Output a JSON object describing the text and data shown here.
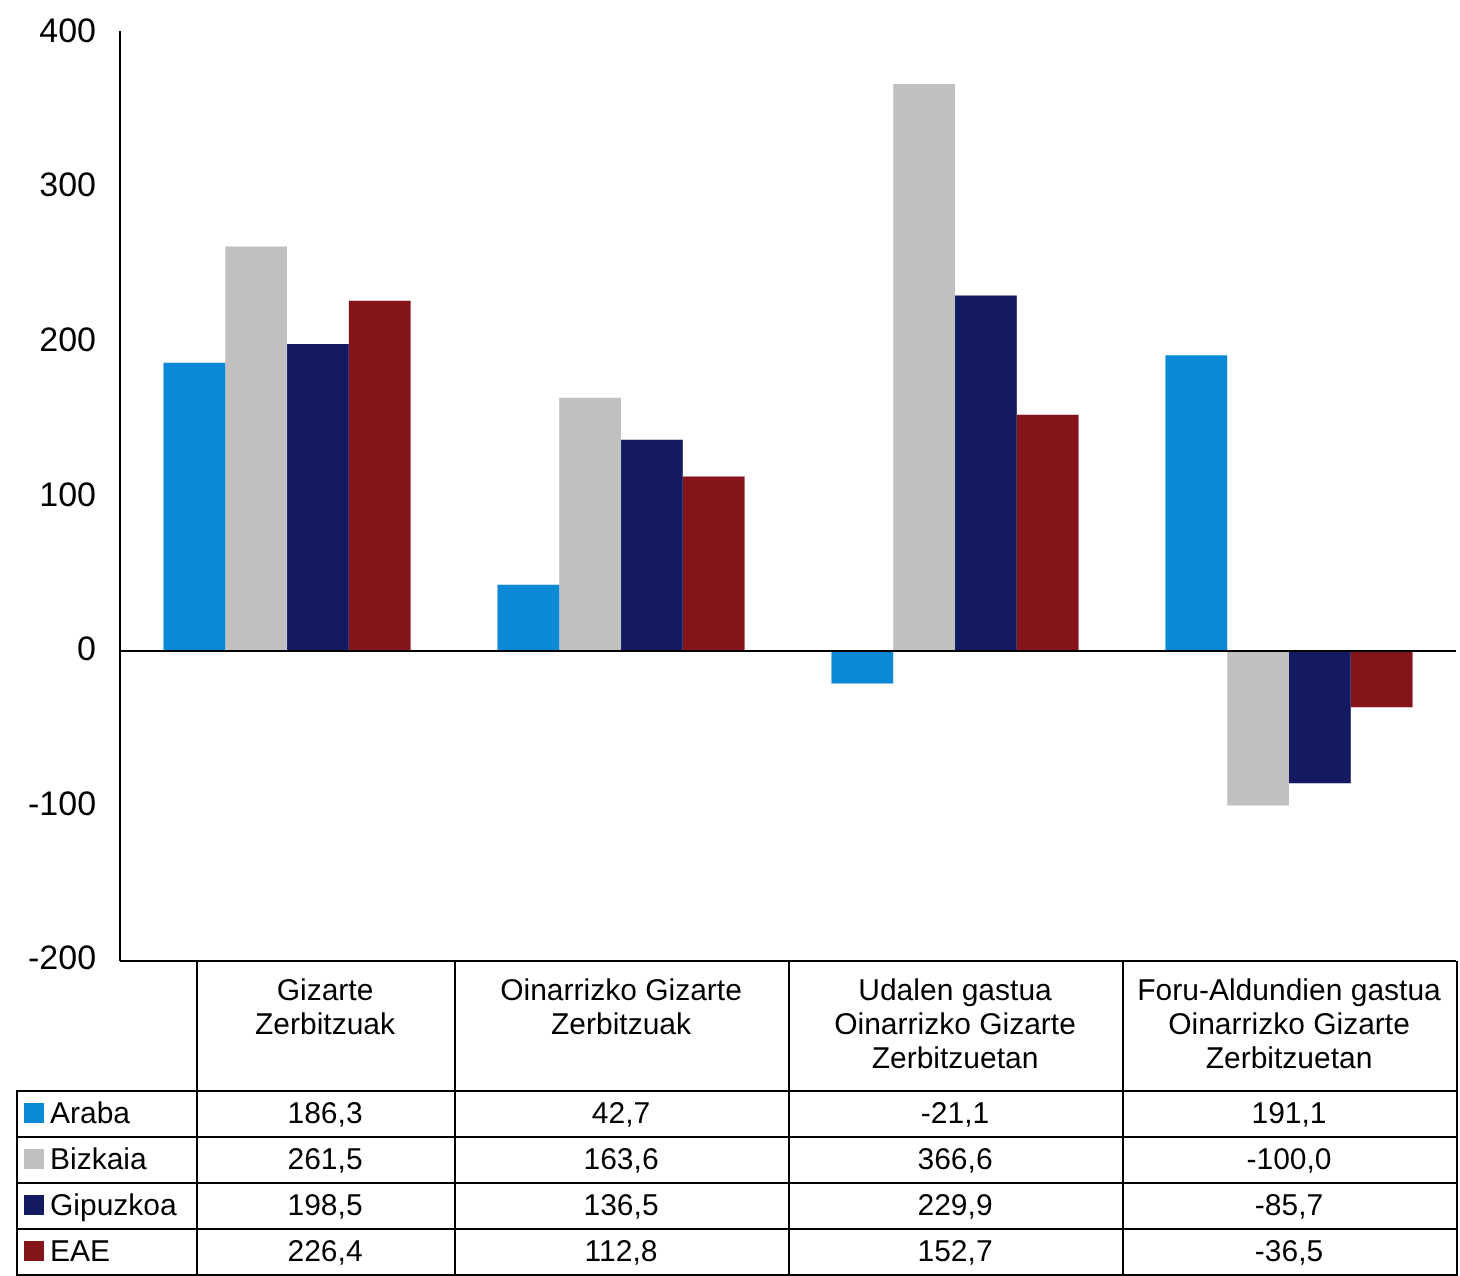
{
  "chart_data": {
    "type": "bar",
    "categories": [
      "Gizarte Zerbitzuak",
      "Oinarrizko Gizarte Zerbitzuak",
      "Udalen gastua Oinarrizko Gizarte Zerbitzuetan",
      "Foru-Aldundien gastua Oinarrizko Gizarte Zerbitzuetan"
    ],
    "series": [
      {
        "name": "Araba",
        "color": "#0a8ad6",
        "values": [
          186.3,
          42.7,
          -21.1,
          191.1
        ],
        "value_labels": [
          "186,3",
          "42,7",
          "-21,1",
          "191,1"
        ]
      },
      {
        "name": "Bizkaia",
        "color": "#c0c0c0",
        "values": [
          261.5,
          163.6,
          366.6,
          -100.0
        ],
        "value_labels": [
          "261,5",
          "163,6",
          "366,6",
          "-100,0"
        ]
      },
      {
        "name": "Gipuzkoa",
        "color": "#141a62",
        "values": [
          198.5,
          136.5,
          229.9,
          -85.7
        ],
        "value_labels": [
          "198,5",
          "136,5",
          "229,9",
          "-85,7"
        ]
      },
      {
        "name": "EAE",
        "color": "#84141a",
        "values": [
          226.4,
          112.8,
          152.7,
          -36.5
        ],
        "value_labels": [
          "226,4",
          "112,8",
          "152,7",
          "-36,5"
        ]
      }
    ],
    "ylim": [
      -200,
      400
    ],
    "yticks": [
      -200,
      -100,
      0,
      100,
      200,
      300,
      400
    ],
    "grid": false,
    "legend": "bottom left",
    "ref_lines": [
      {
        "axis": "y",
        "value": 0
      }
    ]
  }
}
